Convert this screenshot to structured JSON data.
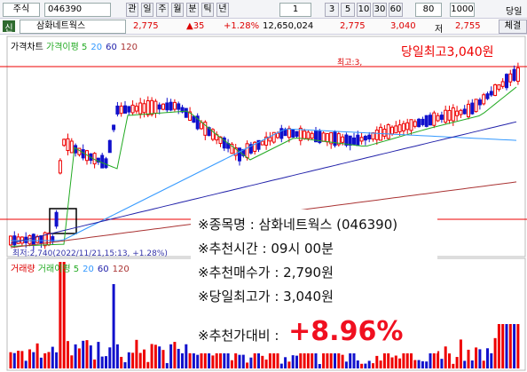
{
  "toolbar": {
    "market": "주식",
    "code": "046390",
    "buttons": [
      "관",
      "일",
      "주",
      "월",
      "분",
      "틱",
      "년"
    ],
    "period": "1",
    "minutes": [
      "3",
      "5",
      "10",
      "30",
      "60"
    ],
    "zoom": "80",
    "count": "1000",
    "today": "당일"
  },
  "quote": {
    "flag": "신",
    "name": "삼화네트웍스",
    "price": "2,775",
    "change": "▲35",
    "rate": "+1.28%",
    "volume": "12,650,024",
    "open": "2,775",
    "high": "3,040",
    "low_label": "저",
    "low": "2,755",
    "trade": "체결"
  },
  "chart": {
    "price_title": "가격차트",
    "price_ma": "가격이평",
    "ma": [
      "5",
      "20",
      "60",
      "120"
    ],
    "high_mark": "최고:3,",
    "high_note": "당일최고3,040원",
    "low_note": "최저:2,740(2022/11/21,15:13, +1.28%)",
    "volume_title": "거래량",
    "volume_ma": "거래이평",
    "vma": [
      "5",
      "20",
      "60",
      "120"
    ]
  },
  "overlay": {
    "lines": [
      "※종목명 : 삼화네트웍스 (046390)",
      "※추천시간 : 09시 00분",
      "※추천매수가 : 2,790원",
      "※당일최고가 : 3,040원"
    ],
    "compare_label": "※추천가대비 :",
    "compare_value": "+8.96%"
  }
}
